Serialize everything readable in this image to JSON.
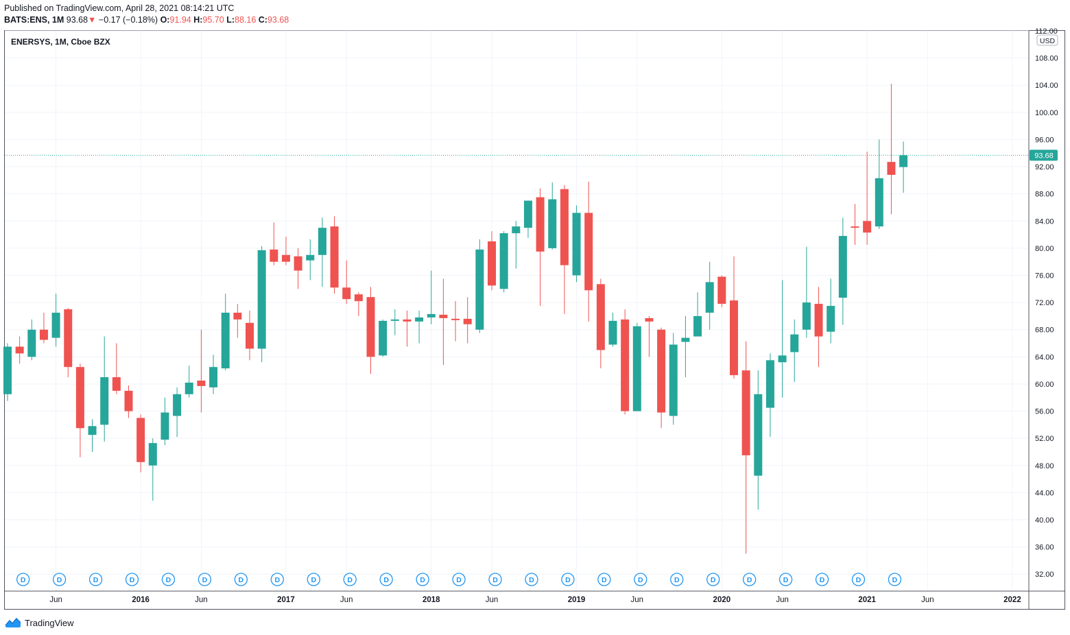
{
  "header": {
    "published": "Published on TradingView.com, April 28, 2021 08:14:21 UTC",
    "symbol": "BATS:ENS, 1M",
    "last": "93.68",
    "arrow": "▼",
    "change": "−0.17 (−0.18%)",
    "o_label": "O:",
    "o_value": "91.94",
    "h_label": "H:",
    "h_value": "95.70",
    "l_label": "L:",
    "l_value": "88.16",
    "c_label": "C:",
    "c_value": "93.68"
  },
  "footer": {
    "brand": "TradingView"
  },
  "colors": {
    "up": "#26a69a",
    "down": "#ef5350",
    "grid": "#f0f3fa",
    "text": "#131722",
    "dividend": "#2196f3"
  },
  "chart_data": {
    "type": "candlestick",
    "title": "ENERSYS, 1M, Cboe BZX",
    "currency": "USD",
    "last_price_label": "93.68",
    "last_price": 93.68,
    "ylim": [
      29.5,
      112
    ],
    "y_ticks": [
      {
        "label": "32.00",
        "value": 32
      },
      {
        "label": "36.00",
        "value": 36
      },
      {
        "label": "40.00",
        "value": 40
      },
      {
        "label": "44.00",
        "value": 44
      },
      {
        "label": "48.00",
        "value": 48
      },
      {
        "label": "52.00",
        "value": 52
      },
      {
        "label": "56.00",
        "value": 56
      },
      {
        "label": "60.00",
        "value": 60
      },
      {
        "label": "64.00",
        "value": 64
      },
      {
        "label": "68.00",
        "value": 68
      },
      {
        "label": "72.00",
        "value": 72
      },
      {
        "label": "76.00",
        "value": 76
      },
      {
        "label": "80.00",
        "value": 80
      },
      {
        "label": "84.00",
        "value": 84
      },
      {
        "label": "88.00",
        "value": 88
      },
      {
        "label": "92.00",
        "value": 92
      },
      {
        "label": "96.00",
        "value": 96
      },
      {
        "label": "100.00",
        "value": 100
      },
      {
        "label": "104.00",
        "value": 104
      },
      {
        "label": "108.00",
        "value": 108
      },
      {
        "label": "112.00",
        "value": 112
      }
    ],
    "x_ticks": [
      {
        "label": "Jun",
        "index": 4
      },
      {
        "label": "2016",
        "index": 11
      },
      {
        "label": "Jun",
        "index": 16
      },
      {
        "label": "2017",
        "index": 23
      },
      {
        "label": "Jun",
        "index": 28
      },
      {
        "label": "2018",
        "index": 35
      },
      {
        "label": "Jun",
        "index": 40
      },
      {
        "label": "2019",
        "index": 47
      },
      {
        "label": "Jun",
        "index": 52
      },
      {
        "label": "2020",
        "index": 59
      },
      {
        "label": "Jun",
        "index": 64
      },
      {
        "label": "2021",
        "index": 71
      },
      {
        "label": "Jun",
        "index": 76
      },
      {
        "label": "2022",
        "index": 83
      }
    ],
    "x_bold": [
      "2016",
      "2017",
      "2018",
      "2019",
      "2020",
      "2021",
      "2022"
    ],
    "dividend_marker": "D",
    "dividend_indices": [
      1,
      4,
      7,
      10,
      13,
      16,
      19,
      22,
      25,
      28,
      31,
      34,
      37,
      40,
      43,
      46,
      49,
      52,
      55,
      58,
      61,
      64,
      67,
      70,
      73
    ],
    "candles": [
      {
        "month": "2015-02",
        "o": 58.5,
        "h": 66.0,
        "l": 57.5,
        "c": 65.5
      },
      {
        "month": "2015-03",
        "o": 65.5,
        "h": 67.0,
        "l": 63.0,
        "c": 64.5
      },
      {
        "month": "2015-04",
        "o": 64.0,
        "h": 69.5,
        "l": 63.5,
        "c": 68.0
      },
      {
        "month": "2015-05",
        "o": 68.0,
        "h": 70.5,
        "l": 66.0,
        "c": 66.5
      },
      {
        "month": "2015-06",
        "o": 66.8,
        "h": 73.3,
        "l": 65.5,
        "c": 70.5
      },
      {
        "month": "2015-07",
        "o": 71.0,
        "h": 71.2,
        "l": 61.0,
        "c": 62.5
      },
      {
        "month": "2015-08",
        "o": 62.5,
        "h": 63.0,
        "l": 49.2,
        "c": 53.5
      },
      {
        "month": "2015-09",
        "o": 52.5,
        "h": 54.8,
        "l": 50.0,
        "c": 53.8
      },
      {
        "month": "2015-10",
        "o": 54.0,
        "h": 67.0,
        "l": 51.5,
        "c": 61.0
      },
      {
        "month": "2015-11",
        "o": 61.0,
        "h": 66.0,
        "l": 58.5,
        "c": 59.0
      },
      {
        "month": "2015-12",
        "o": 59.0,
        "h": 59.8,
        "l": 55.0,
        "c": 56.0
      },
      {
        "month": "2016-01",
        "o": 55.0,
        "h": 55.5,
        "l": 47.0,
        "c": 48.5
      },
      {
        "month": "2016-02",
        "o": 48.0,
        "h": 52.0,
        "l": 42.8,
        "c": 51.3
      },
      {
        "month": "2016-03",
        "o": 51.8,
        "h": 58.0,
        "l": 51.0,
        "c": 55.8
      },
      {
        "month": "2016-04",
        "o": 55.3,
        "h": 59.5,
        "l": 52.2,
        "c": 58.5
      },
      {
        "month": "2016-05",
        "o": 58.5,
        "h": 62.7,
        "l": 58.0,
        "c": 60.2
      },
      {
        "month": "2016-06",
        "o": 60.5,
        "h": 68.0,
        "l": 55.8,
        "c": 59.7
      },
      {
        "month": "2016-07",
        "o": 59.5,
        "h": 64.3,
        "l": 58.5,
        "c": 62.5
      },
      {
        "month": "2016-08",
        "o": 62.3,
        "h": 73.3,
        "l": 62.0,
        "c": 70.5
      },
      {
        "month": "2016-09",
        "o": 70.5,
        "h": 71.8,
        "l": 66.8,
        "c": 69.5
      },
      {
        "month": "2016-10",
        "o": 69.0,
        "h": 70.8,
        "l": 63.5,
        "c": 65.2
      },
      {
        "month": "2016-11",
        "o": 65.2,
        "h": 80.3,
        "l": 63.2,
        "c": 79.7
      },
      {
        "month": "2016-12",
        "o": 79.8,
        "h": 83.8,
        "l": 77.5,
        "c": 78.0
      },
      {
        "month": "2017-01",
        "o": 79.0,
        "h": 81.7,
        "l": 77.5,
        "c": 78.0
      },
      {
        "month": "2017-02",
        "o": 78.8,
        "h": 80.0,
        "l": 74.0,
        "c": 76.7
      },
      {
        "month": "2017-03",
        "o": 78.2,
        "h": 81.3,
        "l": 75.3,
        "c": 79.0
      },
      {
        "month": "2017-04",
        "o": 79.0,
        "h": 84.5,
        "l": 74.3,
        "c": 83.0
      },
      {
        "month": "2017-05",
        "o": 83.2,
        "h": 84.7,
        "l": 73.3,
        "c": 74.2
      },
      {
        "month": "2017-06",
        "o": 74.2,
        "h": 78.2,
        "l": 71.8,
        "c": 72.5
      },
      {
        "month": "2017-07",
        "o": 73.2,
        "h": 73.5,
        "l": 70.0,
        "c": 72.2
      },
      {
        "month": "2017-08",
        "o": 72.8,
        "h": 74.3,
        "l": 61.5,
        "c": 64.0
      },
      {
        "month": "2017-09",
        "o": 64.2,
        "h": 69.5,
        "l": 64.0,
        "c": 69.3
      },
      {
        "month": "2017-10",
        "o": 69.3,
        "h": 71.0,
        "l": 67.2,
        "c": 69.5
      },
      {
        "month": "2017-11",
        "o": 69.5,
        "h": 70.8,
        "l": 65.5,
        "c": 69.2
      },
      {
        "month": "2017-12",
        "o": 69.2,
        "h": 70.8,
        "l": 66.0,
        "c": 69.8
      },
      {
        "month": "2018-01",
        "o": 69.8,
        "h": 76.7,
        "l": 68.8,
        "c": 70.3
      },
      {
        "month": "2018-02",
        "o": 70.2,
        "h": 75.5,
        "l": 62.8,
        "c": 69.7
      },
      {
        "month": "2018-03",
        "o": 69.6,
        "h": 72.2,
        "l": 66.3,
        "c": 69.4
      },
      {
        "month": "2018-04",
        "o": 69.6,
        "h": 72.8,
        "l": 66.0,
        "c": 68.8
      },
      {
        "month": "2018-05",
        "o": 68.0,
        "h": 81.3,
        "l": 67.5,
        "c": 79.8
      },
      {
        "month": "2018-06",
        "o": 81.0,
        "h": 82.5,
        "l": 73.8,
        "c": 74.5
      },
      {
        "month": "2018-07",
        "o": 74.0,
        "h": 82.5,
        "l": 73.5,
        "c": 82.2
      },
      {
        "month": "2018-08",
        "o": 82.2,
        "h": 84.0,
        "l": 77.0,
        "c": 83.2
      },
      {
        "month": "2018-09",
        "o": 83.0,
        "h": 87.0,
        "l": 81.5,
        "c": 87.0
      },
      {
        "month": "2018-10",
        "o": 87.5,
        "h": 88.8,
        "l": 71.5,
        "c": 79.5
      },
      {
        "month": "2018-11",
        "o": 80.0,
        "h": 89.7,
        "l": 79.8,
        "c": 87.2
      },
      {
        "month": "2018-12",
        "o": 88.7,
        "h": 89.3,
        "l": 70.3,
        "c": 77.5
      },
      {
        "month": "2019-01",
        "o": 76.0,
        "h": 86.3,
        "l": 75.0,
        "c": 85.2
      },
      {
        "month": "2019-02",
        "o": 85.2,
        "h": 89.8,
        "l": 69.2,
        "c": 73.8
      },
      {
        "month": "2019-03",
        "o": 74.7,
        "h": 75.5,
        "l": 62.3,
        "c": 65.0
      },
      {
        "month": "2019-04",
        "o": 65.8,
        "h": 70.5,
        "l": 65.5,
        "c": 69.3
      },
      {
        "month": "2019-05",
        "o": 69.5,
        "h": 71.0,
        "l": 55.5,
        "c": 56.0
      },
      {
        "month": "2019-06",
        "o": 56.0,
        "h": 69.0,
        "l": 56.0,
        "c": 68.5
      },
      {
        "month": "2019-07",
        "o": 69.7,
        "h": 70.0,
        "l": 64.0,
        "c": 69.2
      },
      {
        "month": "2019-08",
        "o": 68.0,
        "h": 68.3,
        "l": 53.5,
        "c": 55.8
      },
      {
        "month": "2019-09",
        "o": 55.3,
        "h": 67.5,
        "l": 54.0,
        "c": 65.8
      },
      {
        "month": "2019-10",
        "o": 66.2,
        "h": 70.0,
        "l": 61.0,
        "c": 66.8
      },
      {
        "month": "2019-11",
        "o": 67.0,
        "h": 73.5,
        "l": 67.0,
        "c": 70.0
      },
      {
        "month": "2019-12",
        "o": 70.5,
        "h": 78.0,
        "l": 68.0,
        "c": 75.0
      },
      {
        "month": "2020-01",
        "o": 75.8,
        "h": 76.0,
        "l": 71.3,
        "c": 71.8
      },
      {
        "month": "2020-02",
        "o": 72.3,
        "h": 78.8,
        "l": 60.8,
        "c": 61.3
      },
      {
        "month": "2020-03",
        "o": 62.0,
        "h": 66.3,
        "l": 35.0,
        "c": 49.5
      },
      {
        "month": "2020-04",
        "o": 46.5,
        "h": 62.0,
        "l": 41.5,
        "c": 58.5
      },
      {
        "month": "2020-05",
        "o": 56.5,
        "h": 64.5,
        "l": 52.2,
        "c": 63.5
      },
      {
        "month": "2020-06",
        "o": 63.2,
        "h": 75.3,
        "l": 58.0,
        "c": 64.2
      },
      {
        "month": "2020-07",
        "o": 64.7,
        "h": 69.5,
        "l": 60.3,
        "c": 67.3
      },
      {
        "month": "2020-08",
        "o": 68.0,
        "h": 80.2,
        "l": 66.8,
        "c": 72.0
      },
      {
        "month": "2020-09",
        "o": 71.8,
        "h": 74.3,
        "l": 62.5,
        "c": 67.0
      },
      {
        "month": "2020-10",
        "o": 67.7,
        "h": 75.5,
        "l": 66.0,
        "c": 71.5
      },
      {
        "month": "2020-11",
        "o": 72.7,
        "h": 84.5,
        "l": 68.7,
        "c": 81.8
      },
      {
        "month": "2020-12",
        "o": 83.2,
        "h": 86.5,
        "l": 80.5,
        "c": 83.0
      },
      {
        "month": "2021-01",
        "o": 84.0,
        "h": 94.2,
        "l": 80.5,
        "c": 82.3
      },
      {
        "month": "2021-02",
        "o": 83.2,
        "h": 96.0,
        "l": 82.8,
        "c": 90.3
      },
      {
        "month": "2021-03",
        "o": 92.7,
        "h": 104.2,
        "l": 85.0,
        "c": 90.8
      },
      {
        "month": "2021-04",
        "o": 91.94,
        "h": 95.7,
        "l": 88.16,
        "c": 93.68
      }
    ]
  }
}
